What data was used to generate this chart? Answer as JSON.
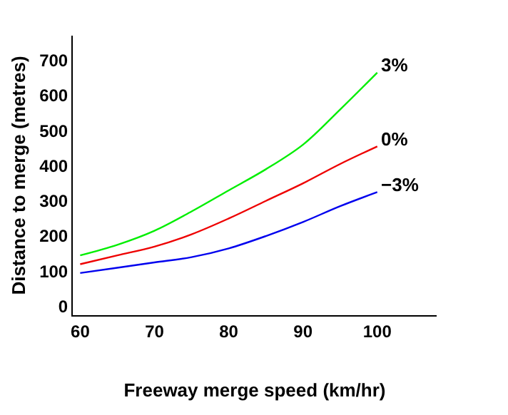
{
  "chart_data": {
    "type": "line",
    "xlabel": "Freeway merge speed (km/hr)",
    "ylabel": "Distance to merge (metres)",
    "x": [
      60,
      65,
      70,
      75,
      80,
      85,
      90,
      95,
      100
    ],
    "series": [
      {
        "name": "3%",
        "color": "#00ee00",
        "values": [
          145,
          175,
          215,
          270,
          330,
          390,
          460,
          560,
          665
        ]
      },
      {
        "name": "0%",
        "color": "#ee0000",
        "values": [
          120,
          145,
          170,
          205,
          250,
          300,
          350,
          405,
          455
        ]
      },
      {
        "name": "−3%",
        "color": "#0000ee",
        "values": [
          95,
          110,
          125,
          140,
          165,
          200,
          240,
          285,
          325
        ]
      }
    ],
    "xlim": [
      59,
      108
    ],
    "ylim": [
      -25,
      770
    ],
    "xticks": [
      60,
      70,
      80,
      90,
      100
    ],
    "yticks": [
      0,
      100,
      200,
      300,
      400,
      500,
      600,
      700
    ],
    "legend": false,
    "marker": "none",
    "line_style": "solid"
  }
}
